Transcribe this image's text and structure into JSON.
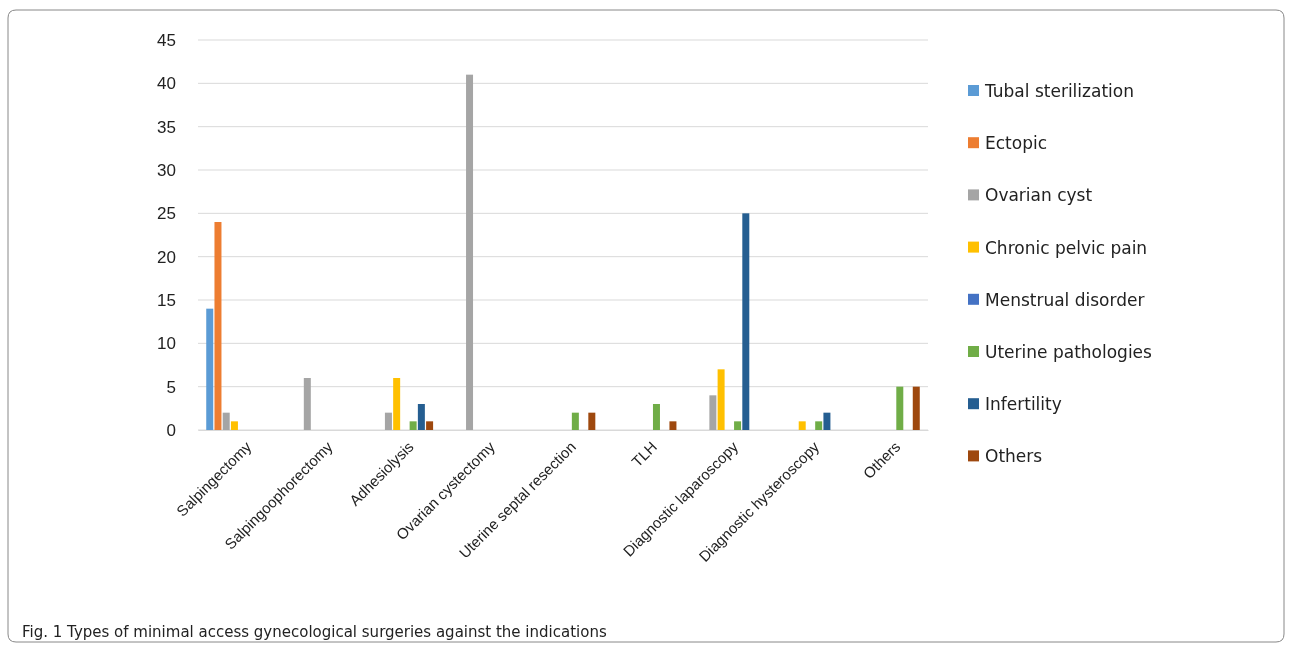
{
  "chart_data": {
    "type": "bar",
    "categories": [
      "Salpingectomy",
      "Salpingoophorectomy",
      "Adhesiolysis",
      "Ovarian cystectomy",
      "Uterine septal resection",
      "TLH",
      "Diagnostic laparoscopy",
      "Diagnostic hysteroscopy",
      "Others"
    ],
    "series": [
      {
        "name": "Tubal sterilization",
        "color": "#5b9bd5",
        "values": [
          14,
          0,
          0,
          0,
          0,
          0,
          0,
          0,
          0
        ]
      },
      {
        "name": "Ectopic",
        "color": "#ed7d31",
        "values": [
          24,
          0,
          0,
          0,
          0,
          0,
          0,
          0,
          0
        ]
      },
      {
        "name": "Ovarian cyst",
        "color": "#a5a5a5",
        "values": [
          2,
          6,
          2,
          41,
          0,
          0,
          4,
          0,
          0
        ]
      },
      {
        "name": "Chronic pelvic pain",
        "color": "#ffc000",
        "values": [
          1,
          0,
          6,
          0,
          0,
          0,
          7,
          1,
          0
        ]
      },
      {
        "name": "Menstrual disorder",
        "color": "#4472c4",
        "values": [
          0,
          0,
          0,
          0,
          0,
          0,
          0,
          0,
          0
        ]
      },
      {
        "name": "Uterine pathologies",
        "color": "#70ad47",
        "values": [
          0,
          0,
          1,
          0,
          2,
          3,
          1,
          1,
          5
        ]
      },
      {
        "name": "Infertility",
        "color": "#255e91",
        "values": [
          0,
          0,
          3,
          0,
          0,
          0,
          25,
          2,
          0
        ]
      },
      {
        "name": "Others",
        "color": "#9e480e",
        "values": [
          0,
          0,
          1,
          0,
          2,
          1,
          0,
          0,
          5
        ]
      }
    ],
    "ylim": [
      0,
      45
    ],
    "yticks": [
      0,
      5,
      10,
      15,
      20,
      25,
      30,
      35,
      40,
      45
    ],
    "grid": "y",
    "legend": "right",
    "annotations": [
      "Fig. 1  Types of minimal access gynecological surgeries against the indications"
    ]
  }
}
